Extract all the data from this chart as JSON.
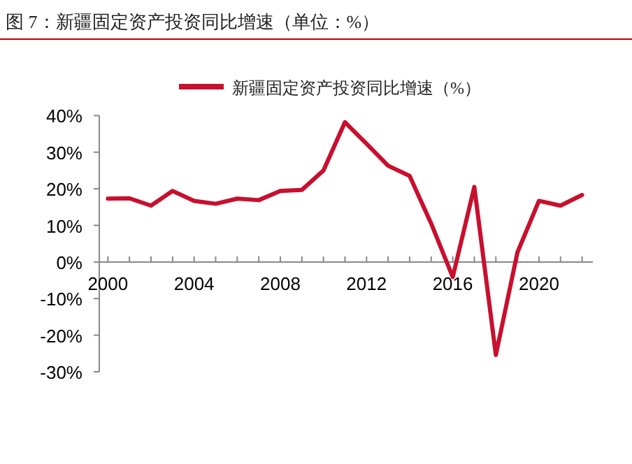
{
  "chart_data": {
    "type": "line",
    "title": "图 7：新疆固定资产投资同比增速（单位：%）",
    "x": [
      2000,
      2001,
      2002,
      2003,
      2004,
      2005,
      2006,
      2007,
      2008,
      2009,
      2010,
      2011,
      2012,
      2013,
      2014,
      2015,
      2016,
      2017,
      2018,
      2019,
      2020,
      2021,
      2022
    ],
    "series": [
      {
        "name": "新疆固定资产投资同比增速（%）",
        "color": "#c8102e",
        "values": [
          17.3,
          17.4,
          15.4,
          19.4,
          16.7,
          15.9,
          17.3,
          16.9,
          19.4,
          19.7,
          25.0,
          38.2,
          32.3,
          26.3,
          23.5,
          10.5,
          -4.1,
          20.5,
          -25.4,
          2.6,
          16.7,
          15.4,
          18.3
        ]
      }
    ],
    "xlim": [
      1999.6,
      2022.5
    ],
    "xticks": [
      2000,
      {
        "value": 2001,
        "label": null
      },
      {
        "value": 2002,
        "label": null
      },
      {
        "value": 2003,
        "label": null
      },
      2004,
      {
        "value": 2005,
        "label": null
      },
      {
        "value": 2006,
        "label": null
      },
      {
        "value": 2007,
        "label": null
      },
      2008,
      {
        "value": 2009,
        "label": null
      },
      {
        "value": 2010,
        "label": null
      },
      {
        "value": 2011,
        "label": null
      },
      2012,
      {
        "value": 2013,
        "label": null
      },
      {
        "value": 2014,
        "label": null
      },
      {
        "value": 2015,
        "label": null
      },
      2016,
      {
        "value": 2017,
        "label": null
      },
      {
        "value": 2018,
        "label": null
      },
      {
        "value": 2019,
        "label": null
      },
      2020,
      {
        "value": 2021,
        "label": null
      },
      {
        "value": 2022,
        "label": null
      }
    ],
    "ylim": [
      -30,
      40
    ],
    "yticks": [
      {
        "value": -30,
        "label": "-30%"
      },
      {
        "value": -20,
        "label": "-20%"
      },
      {
        "value": -10,
        "label": "-10%"
      },
      {
        "value": 0,
        "label": "0%"
      },
      {
        "value": 10,
        "label": "10%"
      },
      {
        "value": 20,
        "label": "20%"
      },
      {
        "value": 30,
        "label": "30%"
      },
      {
        "value": 40,
        "label": "40%"
      }
    ],
    "grid": false,
    "legend": "top",
    "marker": "none",
    "line_style": "solid"
  }
}
